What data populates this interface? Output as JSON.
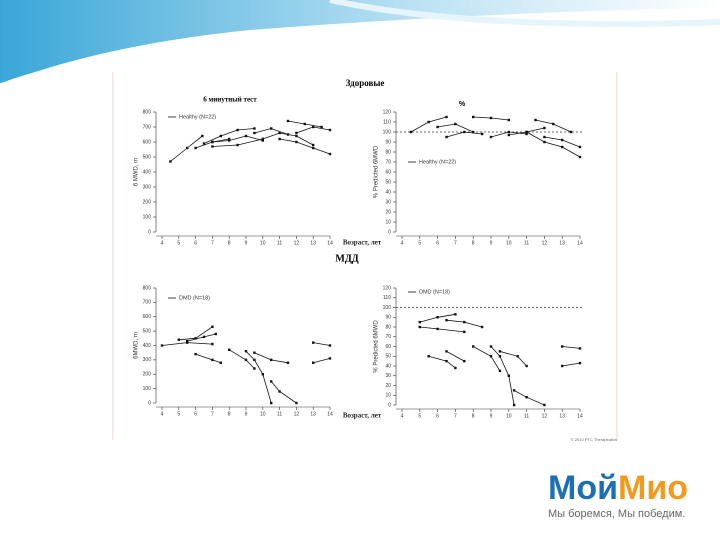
{
  "slide": {
    "healthy_title": "Здоровые",
    "test_label": "6 минутный тест",
    "percent_label": "%",
    "dmd_title": "МДД",
    "copyright": "© 2010 PTC Therapeutics",
    "logo_a": "Мой",
    "logo_b": "Мио",
    "tagline": "Мы боремся, Мы победим."
  },
  "chart_data": [
    {
      "type": "line",
      "legend": "Healthy (N=22)",
      "y_label": "6 MWD, m",
      "xlim": [
        4,
        14
      ],
      "xticks": [
        4,
        5,
        6,
        7,
        8,
        9,
        10,
        11,
        12,
        13,
        14
      ],
      "ylim": [
        0,
        800
      ],
      "yticks": [
        0,
        100,
        200,
        300,
        400,
        500,
        600,
        700,
        800
      ],
      "color": "#111111",
      "series": [
        {
          "x": [
            4.5,
            5.5,
            6.4
          ],
          "values": [
            470,
            560,
            640
          ]
        },
        {
          "x": [
            6,
            7,
            8
          ],
          "values": [
            560,
            600,
            620
          ]
        },
        {
          "x": [
            6.5,
            7.5,
            8.5,
            9.5
          ],
          "values": [
            590,
            640,
            680,
            690
          ]
        },
        {
          "x": [
            7,
            8,
            9,
            10
          ],
          "values": [
            600,
            610,
            640,
            610
          ]
        },
        {
          "x": [
            7,
            8.5,
            10
          ],
          "values": [
            570,
            580,
            620
          ]
        },
        {
          "x": [
            9.5,
            10.5,
            11.5
          ],
          "values": [
            660,
            690,
            650
          ]
        },
        {
          "x": [
            10,
            11,
            12,
            13
          ],
          "values": [
            620,
            660,
            640,
            580
          ]
        },
        {
          "x": [
            11,
            12,
            13,
            14
          ],
          "values": [
            620,
            600,
            560,
            520
          ]
        },
        {
          "x": [
            11.5,
            12.5,
            13.5
          ],
          "values": [
            740,
            720,
            700
          ]
        },
        {
          "x": [
            12,
            13,
            14
          ],
          "values": [
            660,
            700,
            680
          ]
        }
      ]
    },
    {
      "type": "line",
      "legend": "Healthy (N=22)",
      "y_label": "% Predicted 6MWD",
      "x_label": "Возраст, лет",
      "xlim": [
        4,
        14
      ],
      "xticks": [
        4,
        5,
        6,
        7,
        8,
        9,
        10,
        11,
        12,
        13,
        14
      ],
      "ylim": [
        0,
        120
      ],
      "yticks": [
        0,
        10,
        20,
        30,
        40,
        50,
        60,
        70,
        80,
        90,
        100,
        110,
        120
      ],
      "reference_line": 100,
      "color": "#111111",
      "series": [
        {
          "x": [
            4.5,
            5.5,
            6.5
          ],
          "values": [
            100,
            110,
            115
          ]
        },
        {
          "x": [
            6,
            7,
            8
          ],
          "values": [
            105,
            108,
            100
          ]
        },
        {
          "x": [
            6.5,
            7.5,
            8.5
          ],
          "values": [
            95,
            100,
            98
          ]
        },
        {
          "x": [
            8,
            9,
            10
          ],
          "values": [
            115,
            114,
            112
          ]
        },
        {
          "x": [
            9,
            10,
            11
          ],
          "values": [
            95,
            100,
            98
          ]
        },
        {
          "x": [
            10,
            11,
            12
          ],
          "values": [
            97,
            100,
            104
          ]
        },
        {
          "x": [
            11,
            12,
            13,
            14
          ],
          "values": [
            100,
            90,
            85,
            75
          ]
        },
        {
          "x": [
            11.5,
            12.5,
            13.5
          ],
          "values": [
            112,
            108,
            100
          ]
        },
        {
          "x": [
            12,
            13,
            14
          ],
          "values": [
            95,
            92,
            85
          ]
        }
      ]
    },
    {
      "type": "line",
      "legend": "DMD (N=18)",
      "y_label": "6MWD, m",
      "xlim": [
        4,
        14
      ],
      "xticks": [
        4,
        5,
        6,
        7,
        8,
        9,
        10,
        11,
        12,
        13,
        14
      ],
      "ylim": [
        0,
        800
      ],
      "yticks": [
        0,
        100,
        200,
        300,
        400,
        500,
        600,
        700,
        800
      ],
      "color": "#111111",
      "series": [
        {
          "x": [
            5,
            6,
            7
          ],
          "values": [
            440,
            450,
            530
          ]
        },
        {
          "x": [
            5.5,
            6.5,
            7.2
          ],
          "values": [
            430,
            460,
            480
          ]
        },
        {
          "x": [
            4,
            5.5,
            7
          ],
          "values": [
            400,
            420,
            410
          ]
        },
        {
          "x": [
            6,
            7,
            7.5
          ],
          "values": [
            340,
            300,
            280
          ]
        },
        {
          "x": [
            8,
            9,
            9.5
          ],
          "values": [
            370,
            300,
            240
          ]
        },
        {
          "x": [
            9,
            9.5,
            10,
            10.5
          ],
          "values": [
            360,
            300,
            200,
            0
          ]
        },
        {
          "x": [
            9.5,
            10.5,
            11.5
          ],
          "values": [
            350,
            300,
            280
          ]
        },
        {
          "x": [
            10.5,
            11,
            12
          ],
          "values": [
            150,
            80,
            0
          ]
        },
        {
          "x": [
            13,
            14
          ],
          "values": [
            420,
            400
          ]
        },
        {
          "x": [
            13,
            14
          ],
          "values": [
            280,
            310
          ]
        }
      ]
    },
    {
      "type": "line",
      "legend": "DMD (N=18)",
      "y_label": "% Predicted 6MWD",
      "x_label": "Возраст, лет",
      "xlim": [
        4,
        14
      ],
      "xticks": [
        4,
        5,
        6,
        7,
        8,
        9,
        10,
        11,
        12,
        13,
        14
      ],
      "ylim": [
        0,
        120
      ],
      "yticks": [
        0,
        10,
        20,
        30,
        40,
        50,
        60,
        70,
        80,
        90,
        100,
        110,
        120
      ],
      "reference_line": 100,
      "color": "#111111",
      "series": [
        {
          "x": [
            5,
            6,
            7
          ],
          "values": [
            85,
            90,
            93
          ]
        },
        {
          "x": [
            5,
            6,
            7.5
          ],
          "values": [
            80,
            78,
            75
          ]
        },
        {
          "x": [
            6.5,
            7.5,
            8.5
          ],
          "values": [
            87,
            85,
            80
          ]
        },
        {
          "x": [
            5.5,
            6.5,
            7
          ],
          "values": [
            50,
            45,
            38
          ]
        },
        {
          "x": [
            6.5,
            7.5
          ],
          "values": [
            55,
            45
          ]
        },
        {
          "x": [
            8,
            9,
            9.5
          ],
          "values": [
            60,
            50,
            35
          ]
        },
        {
          "x": [
            9,
            9.5,
            10,
            10.3
          ],
          "values": [
            60,
            50,
            30,
            0
          ]
        },
        {
          "x": [
            9.5,
            10.5,
            11
          ],
          "values": [
            55,
            50,
            40
          ]
        },
        {
          "x": [
            10.3,
            11,
            12
          ],
          "values": [
            15,
            8,
            0
          ]
        },
        {
          "x": [
            13,
            14
          ],
          "values": [
            60,
            58
          ]
        },
        {
          "x": [
            13,
            14
          ],
          "values": [
            40,
            43
          ]
        }
      ]
    }
  ]
}
